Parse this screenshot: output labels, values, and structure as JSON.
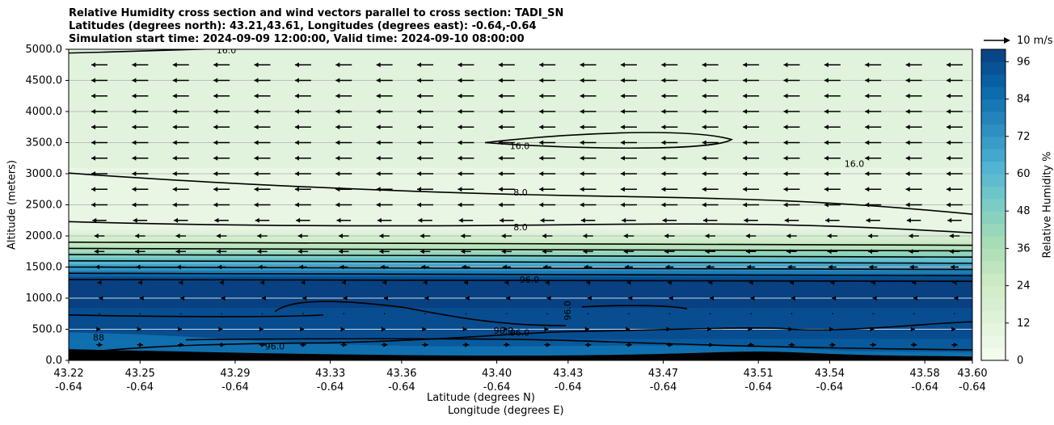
{
  "chart_data": {
    "type": "contour",
    "title_lines": [
      "Relative Humidity cross section and wind vectors parallel to cross section: TADI_SN",
      "Latitudes (degrees north): 43.21,43.61, Longitudes (degrees east): -0.64,-0.64",
      "Simulation start time: 2024-09-09 12:00:00, Valid time: 2024-09-10 08:00:00"
    ],
    "xlabel_lat": "Latitude (degrees N)",
    "xlabel_lon": "Longitude (degrees E)",
    "ylabel": "Altitude (meters)",
    "x_ticks_lat": [
      "43.22",
      "43.25",
      "43.29",
      "43.33",
      "43.36",
      "43.40",
      "43.43",
      "43.47",
      "43.51",
      "43.54",
      "43.58",
      "43.60"
    ],
    "x_ticks_lon": [
      "-0.64",
      "-0.64",
      "-0.64",
      "-0.64",
      "-0.64",
      "-0.64",
      "-0.64",
      "-0.64",
      "-0.64",
      "-0.64",
      "-0.64",
      "-0.64"
    ],
    "y_ticks": [
      "0.0",
      "500.0",
      "1000.0",
      "1500.0",
      "2000.0",
      "2500.0",
      "3000.0",
      "3500.0",
      "4000.0",
      "4500.0",
      "5000.0"
    ],
    "ylim": [
      0,
      5000
    ],
    "xlim": [
      43.22,
      43.6
    ],
    "grid": "horizontal",
    "colorbar": {
      "label": "Relative Humidity %",
      "ticks": [
        "0",
        "12",
        "24",
        "36",
        "48",
        "60",
        "72",
        "84",
        "96"
      ],
      "range": [
        0,
        100
      ],
      "colormap": "GnBu",
      "colors": [
        "#f7fcf0",
        "#e0f3db",
        "#ccebc5",
        "#a8ddb5",
        "#7bccc4",
        "#4eb3d3",
        "#2b8cbe",
        "#0868ac",
        "#084081"
      ]
    },
    "wind_key": "10 m/s",
    "contour_labels": [
      "16.0",
      "16.0",
      "16.0",
      "8.0",
      "8.0",
      "96.0",
      "96.0",
      "96.0",
      "96.0",
      "96.0",
      "88"
    ],
    "rh_profile": [
      {
        "alt": 0,
        "rh": 88
      },
      {
        "alt": 500,
        "rh": 96
      },
      {
        "alt": 1000,
        "rh": 99
      },
      {
        "alt": 1300,
        "rh": 98
      },
      {
        "alt": 1500,
        "rh": 70
      },
      {
        "alt": 1800,
        "rh": 35
      },
      {
        "alt": 2100,
        "rh": 10
      },
      {
        "alt": 2500,
        "rh": 6
      },
      {
        "alt": 3000,
        "rh": 9
      },
      {
        "alt": 3500,
        "rh": 14
      },
      {
        "alt": 4000,
        "rh": 12
      },
      {
        "alt": 5000,
        "rh": 12
      }
    ],
    "wind_profile": [
      {
        "alt": 250,
        "u": 3
      },
      {
        "alt": 500,
        "u": 1
      },
      {
        "alt": 750,
        "u": 0
      },
      {
        "alt": 1000,
        "u": -0.5
      },
      {
        "alt": 1250,
        "u": -2
      },
      {
        "alt": 1500,
        "u": -4
      },
      {
        "alt": 1750,
        "u": -5
      },
      {
        "alt": 2000,
        "u": -5
      },
      {
        "alt": 2250,
        "u": -7
      },
      {
        "alt": 2500,
        "u": -8
      },
      {
        "alt": 2750,
        "u": -8
      },
      {
        "alt": 3000,
        "u": -8
      },
      {
        "alt": 3250,
        "u": -8
      },
      {
        "alt": 3500,
        "u": -8
      },
      {
        "alt": 3750,
        "u": -8
      },
      {
        "alt": 4000,
        "u": -8
      },
      {
        "alt": 4250,
        "u": -8
      },
      {
        "alt": 4500,
        "u": -8
      },
      {
        "alt": 4750,
        "u": -8
      }
    ]
  }
}
